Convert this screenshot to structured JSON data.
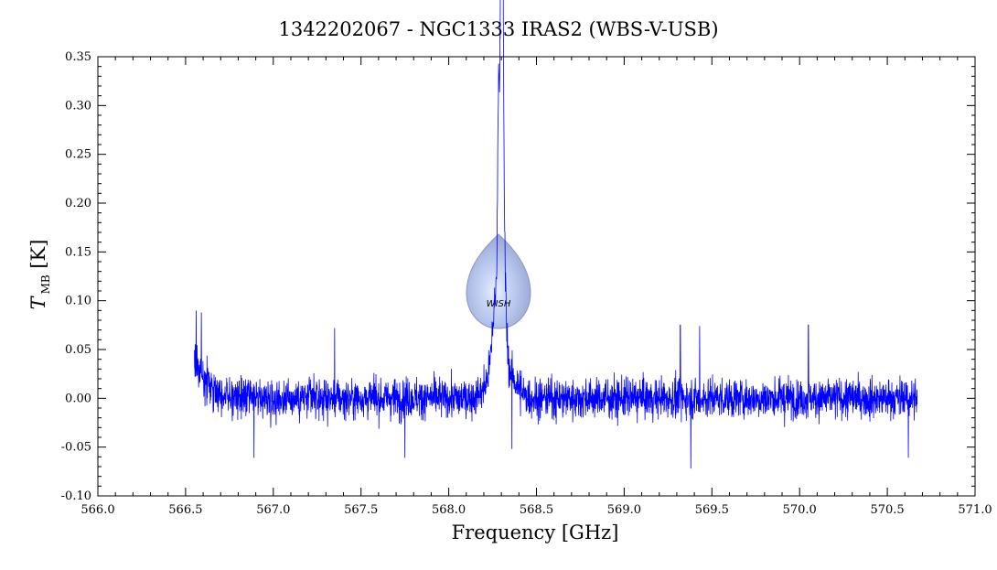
{
  "chart_data": {
    "type": "line",
    "title": "1342202067 - NGC1333 IRAS2 (WBS-V-USB)",
    "xlabel": "Frequency [GHz]",
    "ylabel": {
      "main": "T",
      "sub": "MB",
      "unit": " [K]"
    },
    "xlim": [
      566.0,
      571.0
    ],
    "ylim": [
      -0.1,
      0.35
    ],
    "xticks": [
      "566.0",
      "566.5",
      "567.0",
      "567.5",
      "568.0",
      "568.5",
      "569.0",
      "569.5",
      "570.0",
      "570.5",
      "571.0"
    ],
    "yticks": [
      "-0.10",
      "-0.05",
      "0.00",
      "0.05",
      "0.10",
      "0.15",
      "0.20",
      "0.25",
      "0.30",
      "0.35"
    ],
    "grid": false,
    "series": [
      {
        "color": "#0000ff",
        "x_range": [
          566.55,
          570.67
        ],
        "baseline_noise_rms": 0.017,
        "low_frequency_excess": {
          "x_start": 566.55,
          "x_end": 566.75,
          "amplitude": 0.04
        },
        "spikes": [
          {
            "x": 566.56,
            "y": 0.09
          },
          {
            "x": 566.59,
            "y": 0.088
          },
          {
            "x": 566.89,
            "y": -0.061
          },
          {
            "x": 567.35,
            "y": 0.072
          },
          {
            "x": 567.75,
            "y": -0.061
          },
          {
            "x": 568.36,
            "y": -0.052
          },
          {
            "x": 569.32,
            "y": 0.075
          },
          {
            "x": 569.38,
            "y": -0.072
          },
          {
            "x": 569.43,
            "y": 0.074
          },
          {
            "x": 570.05,
            "y": 0.075
          },
          {
            "x": 570.62,
            "y": -0.061
          }
        ],
        "line_feature": {
          "center": 568.3,
          "components": [
            {
              "x": 568.3,
              "y": 0.336,
              "width": 0.005
            },
            {
              "x": 568.305,
              "y": 0.284,
              "width": 0.006
            },
            {
              "x": 568.285,
              "y": 0.22,
              "width": 0.006
            },
            {
              "x": 568.31,
              "y": 0.15,
              "width": 0.012
            },
            {
              "x": 568.27,
              "y": 0.07,
              "width": 0.02
            },
            {
              "x": 568.3,
              "y": 0.04,
              "width": 0.06
            }
          ]
        }
      }
    ],
    "watermark": {
      "label": "WISH"
    }
  }
}
